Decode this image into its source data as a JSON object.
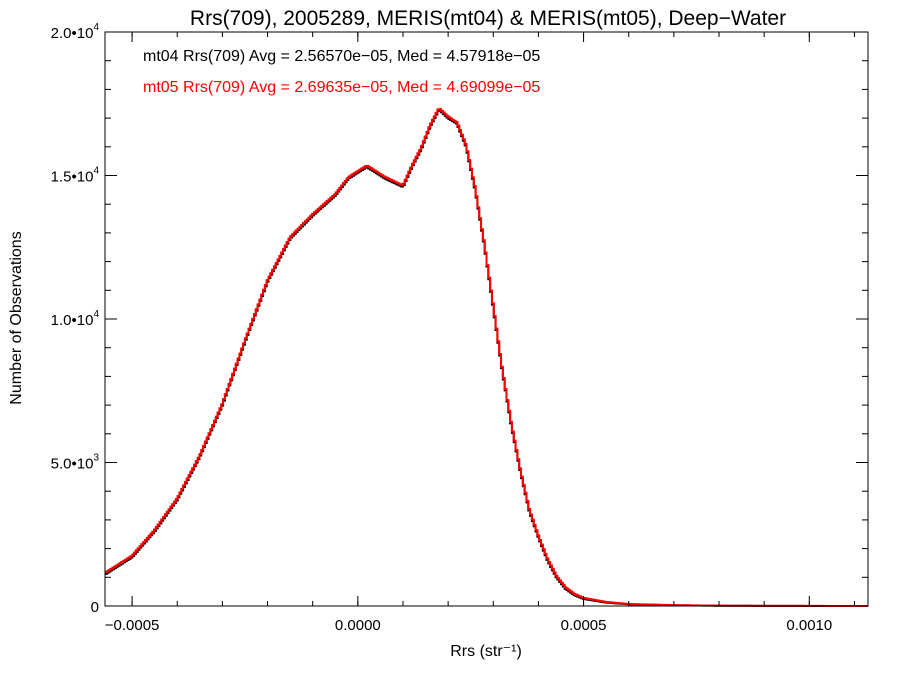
{
  "chart_data": {
    "type": "line",
    "title": "Rrs(709), 2005289, MERIS(mt04) & MERIS(mt05), Deep−Water",
    "xlabel": "Rrs (str⁻¹)",
    "ylabel": "Number of Observations",
    "xlim": [
      -0.00056,
      0.00113
    ],
    "ylim": [
      0,
      20000
    ],
    "grid": false,
    "step": true,
    "x_ticks": [
      -0.0005,
      0.0,
      0.0005,
      0.001
    ],
    "x_tick_labels": [
      "−0.0005",
      "0.0000",
      "0.0005",
      "0.0010"
    ],
    "y_ticks": [
      0,
      5000,
      10000,
      15000,
      20000
    ],
    "y_tick_labels": [
      {
        "base": "0",
        "exp": ""
      },
      {
        "base": "5.0•10",
        "exp": "3"
      },
      {
        "base": "1.0•10",
        "exp": "4"
      },
      {
        "base": "1.5•10",
        "exp": "4"
      },
      {
        "base": "2.0•10",
        "exp": "4"
      }
    ],
    "annotations": [
      {
        "text": "mt04 Rrs(709) Avg = 2.56570e−05, Med = 4.57918e−05",
        "color": "#000000"
      },
      {
        "text": "mt05 Rrs(709) Avg = 2.69635e−05, Med = 4.69099e−05",
        "color": "#ff0000"
      }
    ],
    "series": [
      {
        "color": "#000000",
        "x": [
          -0.00056,
          -0.0005,
          -0.00045,
          -0.0004,
          -0.00035,
          -0.0003,
          -0.00025,
          -0.0002,
          -0.00015,
          -0.0001,
          -5e-05,
          -2e-05,
          0.0,
          2e-05,
          4e-05,
          6e-05,
          0.0001,
          0.00012,
          0.00014,
          0.00016,
          0.00018,
          0.0002,
          0.00022,
          0.00024,
          0.00026,
          0.00028,
          0.0003,
          0.00032,
          0.00034,
          0.00036,
          0.00038,
          0.0004,
          0.00042,
          0.00044,
          0.00046,
          0.00048,
          0.0005,
          0.00055,
          0.0006,
          0.0007,
          0.0008,
          0.0009,
          0.001,
          0.00113
        ],
        "y": [
          1100,
          1700,
          2600,
          3700,
          5200,
          7000,
          9200,
          11300,
          12800,
          13600,
          14300,
          14900,
          15100,
          15300,
          15100,
          14900,
          14600,
          15300,
          15900,
          16700,
          17300,
          17000,
          16800,
          16000,
          14500,
          12600,
          10400,
          8200,
          6300,
          4700,
          3300,
          2400,
          1600,
          1000,
          600,
          380,
          250,
          120,
          60,
          25,
          10,
          5,
          2,
          0
        ]
      },
      {
        "color": "#ff0000",
        "x": [
          -0.00056,
          -0.0005,
          -0.00045,
          -0.0004,
          -0.00035,
          -0.0003,
          -0.00025,
          -0.0002,
          -0.00015,
          -0.0001,
          -5e-05,
          -2e-05,
          0.0,
          2e-05,
          4e-05,
          6e-05,
          0.0001,
          0.00012,
          0.00014,
          0.00016,
          0.00018,
          0.0002,
          0.00022,
          0.00024,
          0.00026,
          0.00028,
          0.0003,
          0.00032,
          0.00034,
          0.00036,
          0.00038,
          0.0004,
          0.00042,
          0.00044,
          0.00046,
          0.00048,
          0.0005,
          0.00055,
          0.0006,
          0.0007,
          0.0008,
          0.0009,
          0.001,
          0.00113
        ],
        "y": [
          1150,
          1750,
          2650,
          3750,
          5250,
          7050,
          9250,
          11350,
          12850,
          13650,
          14350,
          14950,
          15150,
          15350,
          15150,
          14950,
          14650,
          15350,
          15950,
          16750,
          17350,
          17050,
          16850,
          16050,
          14550,
          12650,
          10450,
          8250,
          6350,
          4750,
          3350,
          2450,
          1650,
          1050,
          650,
          420,
          280,
          140,
          70,
          30,
          12,
          6,
          3,
          0
        ]
      }
    ]
  }
}
